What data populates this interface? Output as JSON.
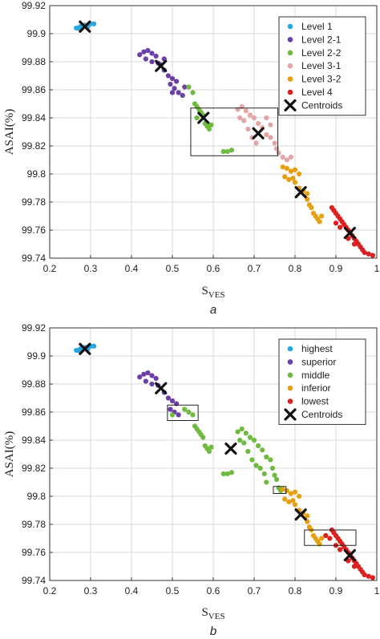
{
  "colors": {
    "level1": "#27a7df",
    "level21": "#6a3fa6",
    "level22": "#6fba3f",
    "level31": "#e3a6a6",
    "level32": "#e6a00f",
    "level4": "#dd2020",
    "centroid": "#111111"
  },
  "chart_data": [
    {
      "type": "scatter",
      "caption": "a",
      "xlabel": "S",
      "xlabel_sub": "VES",
      "ylabel": "ASAI(%)",
      "xlim": [
        0.2,
        1.0
      ],
      "ylim": [
        99.74,
        99.92
      ],
      "xticks": [
        "0.2",
        "0.3",
        "0.4",
        "0.5",
        "0.6",
        "0.7",
        "0.8",
        "0.9",
        "1"
      ],
      "yticks": [
        "99.74",
        "99.76",
        "99.78",
        "99.8",
        "99.82",
        "99.84",
        "99.86",
        "99.88",
        "99.9",
        "99.92"
      ],
      "grid": true,
      "legend_position": "top-right",
      "series": [
        {
          "name": "Level 1",
          "color_key": "level1",
          "points": [
            [
              0.265,
              99.904
            ],
            [
              0.275,
              99.905
            ],
            [
              0.285,
              99.906
            ],
            [
              0.293,
              99.905
            ],
            [
              0.3,
              99.907
            ],
            [
              0.308,
              99.907
            ],
            [
              0.27,
              99.904
            ],
            [
              0.29,
              99.906
            ]
          ]
        },
        {
          "name": "Level 2-1",
          "color_key": "level21",
          "points": [
            [
              0.42,
              99.885
            ],
            [
              0.43,
              99.887
            ],
            [
              0.44,
              99.888
            ],
            [
              0.45,
              99.886
            ],
            [
              0.46,
              99.884
            ],
            [
              0.435,
              99.882
            ],
            [
              0.45,
              99.88
            ],
            [
              0.465,
              99.879
            ],
            [
              0.48,
              99.874
            ],
            [
              0.49,
              99.87
            ],
            [
              0.5,
              99.868
            ],
            [
              0.51,
              99.866
            ],
            [
              0.495,
              99.864
            ],
            [
              0.505,
              99.861
            ],
            [
              0.515,
              99.858
            ],
            [
              0.525,
              99.856
            ],
            [
              0.53,
              99.862
            ],
            [
              0.5,
              99.858
            ],
            [
              0.47,
              99.878
            ],
            [
              0.48,
              99.882
            ]
          ]
        },
        {
          "name": "Level 2-2",
          "color_key": "level22",
          "points": [
            [
              0.54,
              99.862
            ],
            [
              0.55,
              99.858
            ],
            [
              0.555,
              99.85
            ],
            [
              0.56,
              99.848
            ],
            [
              0.565,
              99.846
            ],
            [
              0.57,
              99.844
            ],
            [
              0.575,
              99.842
            ],
            [
              0.58,
              99.836
            ],
            [
              0.585,
              99.834
            ],
            [
              0.59,
              99.832
            ],
            [
              0.595,
              99.835
            ],
            [
              0.56,
              99.84
            ],
            [
              0.625,
              99.816
            ],
            [
              0.635,
              99.816
            ],
            [
              0.645,
              99.817
            ]
          ]
        },
        {
          "name": "Level 3-1",
          "color_key": "level31",
          "points": [
            [
              0.66,
              99.846
            ],
            [
              0.67,
              99.848
            ],
            [
              0.68,
              99.845
            ],
            [
              0.665,
              99.84
            ],
            [
              0.675,
              99.838
            ],
            [
              0.69,
              99.842
            ],
            [
              0.7,
              99.84
            ],
            [
              0.71,
              99.836
            ],
            [
              0.72,
              99.833
            ],
            [
              0.73,
              99.828
            ],
            [
              0.74,
              99.826
            ],
            [
              0.75,
              99.822
            ],
            [
              0.755,
              99.818
            ],
            [
              0.76,
              99.815
            ],
            [
              0.77,
              99.812
            ],
            [
              0.78,
              99.81
            ],
            [
              0.79,
              99.812
            ],
            [
              0.685,
              99.832
            ],
            [
              0.695,
              99.826
            ],
            [
              0.705,
              99.822
            ],
            [
              0.74,
              99.835
            ],
            [
              0.73,
              99.84
            ]
          ]
        },
        {
          "name": "Level 3-2",
          "color_key": "level32",
          "points": [
            [
              0.77,
              99.805
            ],
            [
              0.78,
              99.804
            ],
            [
              0.79,
              99.802
            ],
            [
              0.8,
              99.803
            ],
            [
              0.81,
              99.8
            ],
            [
              0.775,
              99.798
            ],
            [
              0.785,
              99.796
            ],
            [
              0.795,
              99.797
            ],
            [
              0.8,
              99.794
            ],
            [
              0.81,
              99.79
            ],
            [
              0.82,
              99.788
            ],
            [
              0.83,
              99.782
            ],
            [
              0.835,
              99.778
            ],
            [
              0.84,
              99.776
            ],
            [
              0.845,
              99.772
            ],
            [
              0.85,
              99.77
            ],
            [
              0.855,
              99.768
            ],
            [
              0.86,
              99.766
            ],
            [
              0.865,
              99.77
            ],
            [
              0.83,
              99.786
            ]
          ]
        },
        {
          "name": "Level 4",
          "color_key": "level4",
          "points": [
            [
              0.89,
              99.776
            ],
            [
              0.895,
              99.774
            ],
            [
              0.9,
              99.772
            ],
            [
              0.905,
              99.77
            ],
            [
              0.91,
              99.768
            ],
            [
              0.915,
              99.766
            ],
            [
              0.92,
              99.764
            ],
            [
              0.925,
              99.762
            ],
            [
              0.93,
              99.76
            ],
            [
              0.935,
              99.758
            ],
            [
              0.94,
              99.756
            ],
            [
              0.945,
              99.754
            ],
            [
              0.95,
              99.752
            ],
            [
              0.955,
              99.75
            ],
            [
              0.96,
              99.748
            ],
            [
              0.965,
              99.746
            ],
            [
              0.97,
              99.744
            ],
            [
              0.98,
              99.743
            ],
            [
              0.99,
              99.742
            ],
            [
              0.9,
              99.765
            ],
            [
              0.91,
              99.762
            ],
            [
              0.93,
              99.754
            ],
            [
              0.945,
              99.75
            ]
          ]
        },
        {
          "name": "Centroids",
          "color_key": "centroid",
          "marker": "x",
          "points": [
            [
              0.286,
              99.905
            ],
            [
              0.472,
              99.877
            ],
            [
              0.576,
              99.84
            ],
            [
              0.71,
              99.829
            ],
            [
              0.814,
              99.787
            ],
            [
              0.934,
              99.758
            ]
          ]
        }
      ],
      "boxes": [
        {
          "x0": 0.545,
          "x1": 0.758,
          "y0": 99.813,
          "y1": 99.847
        }
      ]
    },
    {
      "type": "scatter",
      "caption": "b",
      "xlabel": "S",
      "xlabel_sub": "VES",
      "ylabel": "ASAI(%)",
      "xlim": [
        0.2,
        1.0
      ],
      "ylim": [
        99.74,
        99.92
      ],
      "xticks": [
        "0.2",
        "0.3",
        "0.4",
        "0.5",
        "0.6",
        "0.7",
        "0.8",
        "0.9",
        "1"
      ],
      "yticks": [
        "99.74",
        "99.76",
        "99.78",
        "99.8",
        "99.82",
        "99.84",
        "99.86",
        "99.88",
        "99.9",
        "99.92"
      ],
      "grid": true,
      "legend_position": "top-right",
      "series": [
        {
          "name": "highest",
          "color_key": "level1",
          "points": [
            [
              0.265,
              99.904
            ],
            [
              0.275,
              99.905
            ],
            [
              0.285,
              99.906
            ],
            [
              0.293,
              99.905
            ],
            [
              0.3,
              99.907
            ],
            [
              0.308,
              99.907
            ],
            [
              0.27,
              99.904
            ],
            [
              0.29,
              99.906
            ]
          ]
        },
        {
          "name": "superior",
          "color_key": "level21",
          "points": [
            [
              0.42,
              99.885
            ],
            [
              0.43,
              99.887
            ],
            [
              0.44,
              99.888
            ],
            [
              0.45,
              99.886
            ],
            [
              0.46,
              99.884
            ],
            [
              0.435,
              99.882
            ],
            [
              0.45,
              99.88
            ],
            [
              0.465,
              99.879
            ],
            [
              0.48,
              99.874
            ],
            [
              0.49,
              99.87
            ],
            [
              0.5,
              99.868
            ],
            [
              0.51,
              99.866
            ],
            [
              0.495,
              99.862
            ],
            [
              0.505,
              99.86
            ],
            [
              0.515,
              99.858
            ]
          ]
        },
        {
          "name": "middle",
          "color_key": "level22",
          "points": [
            [
              0.5,
              99.858
            ],
            [
              0.53,
              99.862
            ],
            [
              0.54,
              99.86
            ],
            [
              0.55,
              99.858
            ],
            [
              0.555,
              99.85
            ],
            [
              0.56,
              99.848
            ],
            [
              0.565,
              99.846
            ],
            [
              0.57,
              99.844
            ],
            [
              0.575,
              99.842
            ],
            [
              0.58,
              99.836
            ],
            [
              0.585,
              99.834
            ],
            [
              0.59,
              99.832
            ],
            [
              0.595,
              99.835
            ],
            [
              0.625,
              99.816
            ],
            [
              0.635,
              99.816
            ],
            [
              0.645,
              99.817
            ],
            [
              0.66,
              99.846
            ],
            [
              0.67,
              99.848
            ],
            [
              0.68,
              99.845
            ],
            [
              0.665,
              99.84
            ],
            [
              0.675,
              99.838
            ],
            [
              0.69,
              99.842
            ],
            [
              0.7,
              99.84
            ],
            [
              0.71,
              99.836
            ],
            [
              0.72,
              99.833
            ],
            [
              0.73,
              99.828
            ],
            [
              0.74,
              99.826
            ],
            [
              0.745,
              99.82
            ],
            [
              0.75,
              99.815
            ],
            [
              0.755,
              99.812
            ],
            [
              0.76,
              99.806
            ],
            [
              0.765,
              99.804
            ],
            [
              0.685,
              99.832
            ],
            [
              0.695,
              99.826
            ],
            [
              0.705,
              99.822
            ],
            [
              0.715,
              99.82
            ],
            [
              0.725,
              99.816
            ],
            [
              0.73,
              99.81
            ]
          ]
        },
        {
          "name": "inferior",
          "color_key": "level32",
          "points": [
            [
              0.77,
              99.805
            ],
            [
              0.78,
              99.804
            ],
            [
              0.79,
              99.802
            ],
            [
              0.8,
              99.803
            ],
            [
              0.81,
              99.8
            ],
            [
              0.775,
              99.798
            ],
            [
              0.785,
              99.796
            ],
            [
              0.795,
              99.797
            ],
            [
              0.8,
              99.794
            ],
            [
              0.81,
              99.79
            ],
            [
              0.82,
              99.788
            ],
            [
              0.83,
              99.782
            ],
            [
              0.835,
              99.778
            ],
            [
              0.84,
              99.776
            ],
            [
              0.845,
              99.772
            ],
            [
              0.85,
              99.77
            ],
            [
              0.855,
              99.768
            ],
            [
              0.86,
              99.766
            ],
            [
              0.865,
              99.77
            ],
            [
              0.83,
              99.786
            ]
          ]
        },
        {
          "name": "lowest",
          "color_key": "level4",
          "points": [
            [
              0.875,
              99.772
            ],
            [
              0.885,
              99.77
            ],
            [
              0.89,
              99.776
            ],
            [
              0.895,
              99.774
            ],
            [
              0.9,
              99.772
            ],
            [
              0.905,
              99.77
            ],
            [
              0.91,
              99.768
            ],
            [
              0.915,
              99.766
            ],
            [
              0.92,
              99.764
            ],
            [
              0.925,
              99.762
            ],
            [
              0.93,
              99.76
            ],
            [
              0.935,
              99.758
            ],
            [
              0.94,
              99.756
            ],
            [
              0.945,
              99.754
            ],
            [
              0.95,
              99.752
            ],
            [
              0.955,
              99.75
            ],
            [
              0.96,
              99.748
            ],
            [
              0.965,
              99.746
            ],
            [
              0.97,
              99.744
            ],
            [
              0.98,
              99.743
            ],
            [
              0.99,
              99.742
            ],
            [
              0.9,
              99.765
            ],
            [
              0.91,
              99.762
            ],
            [
              0.93,
              99.754
            ],
            [
              0.945,
              99.75
            ]
          ]
        },
        {
          "name": "Centroids",
          "color_key": "centroid",
          "marker": "x",
          "points": [
            [
              0.286,
              99.905
            ],
            [
              0.472,
              99.877
            ],
            [
              0.643,
              99.834
            ],
            [
              0.814,
              99.787
            ],
            [
              0.934,
              99.758
            ]
          ]
        }
      ],
      "boxes": [
        {
          "x0": 0.488,
          "x1": 0.563,
          "y0": 99.854,
          "y1": 99.865
        },
        {
          "x0": 0.747,
          "x1": 0.778,
          "y0": 99.802,
          "y1": 99.807
        },
        {
          "x0": 0.823,
          "x1": 0.949,
          "y0": 99.765,
          "y1": 99.776
        }
      ]
    }
  ]
}
